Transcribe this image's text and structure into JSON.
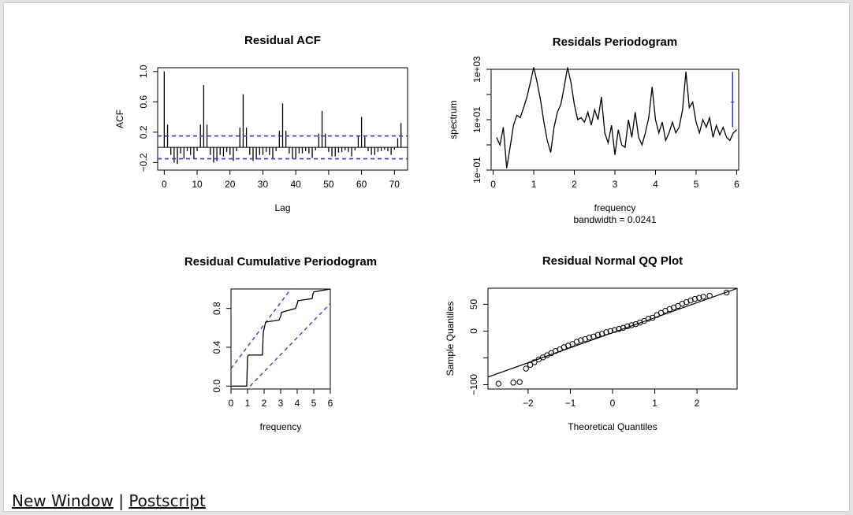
{
  "links": {
    "new_window": "New Window",
    "separator": "|",
    "postscript": "Postscript"
  },
  "colors": {
    "reference": "#3b3bdb",
    "data": "#000000"
  },
  "chart_data": [
    {
      "type": "bar",
      "title": "Residual ACF",
      "xlabel": "Lag",
      "ylabel": "ACF",
      "xlim": [
        -2,
        74
      ],
      "ylim": [
        -0.3,
        1.05
      ],
      "xticks": [
        "0",
        "10",
        "20",
        "30",
        "40",
        "50",
        "60",
        "70"
      ],
      "yticks": [
        "−0.2",
        "0.2",
        "0.6",
        "1.0"
      ],
      "confidence_band": 0.15,
      "lags": [
        0,
        1,
        2,
        3,
        4,
        5,
        6,
        7,
        8,
        9,
        10,
        11,
        12,
        13,
        14,
        15,
        16,
        17,
        18,
        19,
        20,
        21,
        22,
        23,
        24,
        25,
        26,
        27,
        28,
        29,
        30,
        31,
        32,
        33,
        34,
        35,
        36,
        37,
        38,
        39,
        40,
        41,
        42,
        43,
        44,
        45,
        46,
        47,
        48,
        49,
        50,
        51,
        52,
        53,
        54,
        55,
        56,
        57,
        58,
        59,
        60,
        61,
        62,
        63,
        64,
        65,
        66,
        67,
        68,
        69,
        70,
        71,
        72
      ],
      "values": [
        1.0,
        0.3,
        -0.1,
        -0.2,
        -0.22,
        -0.08,
        -0.15,
        -0.05,
        -0.1,
        -0.15,
        -0.05,
        0.3,
        0.82,
        0.3,
        -0.1,
        -0.2,
        -0.18,
        -0.1,
        -0.12,
        -0.06,
        -0.1,
        -0.18,
        -0.05,
        0.26,
        0.7,
        0.26,
        -0.1,
        -0.18,
        -0.16,
        -0.1,
        -0.1,
        -0.06,
        -0.1,
        -0.16,
        -0.05,
        0.22,
        0.58,
        0.22,
        -0.08,
        -0.15,
        -0.14,
        -0.08,
        -0.08,
        -0.05,
        -0.08,
        -0.14,
        -0.04,
        0.18,
        0.48,
        0.18,
        -0.06,
        -0.12,
        -0.12,
        -0.07,
        -0.06,
        -0.04,
        -0.06,
        -0.12,
        -0.04,
        0.15,
        0.4,
        0.14,
        -0.05,
        -0.1,
        -0.1,
        -0.06,
        -0.05,
        -0.03,
        -0.05,
        -0.1,
        -0.03,
        0.12,
        0.32
      ]
    },
    {
      "type": "line",
      "title": "Residals Periodogram",
      "xlabel": "frequency",
      "sublabel": "bandwidth = 0.0241",
      "ylabel": "spectrum",
      "log_y": true,
      "xlim": [
        -0.05,
        6.05
      ],
      "ylim": [
        0.1,
        1000
      ],
      "xticks": [
        "0",
        "1",
        "2",
        "3",
        "4",
        "5",
        "6"
      ],
      "yticks": [
        "1e−01",
        "1e+01",
        "1e+03"
      ],
      "x": [
        0.083,
        0.167,
        0.25,
        0.333,
        0.417,
        0.5,
        0.583,
        0.667,
        0.75,
        0.833,
        0.917,
        1.0,
        1.083,
        1.167,
        1.25,
        1.333,
        1.417,
        1.5,
        1.583,
        1.667,
        1.75,
        1.833,
        1.917,
        2.0,
        2.083,
        2.167,
        2.25,
        2.333,
        2.417,
        2.5,
        2.583,
        2.667,
        2.75,
        2.833,
        2.917,
        3.0,
        3.083,
        3.167,
        3.25,
        3.333,
        3.417,
        3.5,
        3.583,
        3.667,
        3.75,
        3.833,
        3.917,
        4.0,
        4.083,
        4.167,
        4.25,
        4.333,
        4.417,
        4.5,
        4.583,
        4.667,
        4.75,
        4.833,
        4.917,
        5.0,
        5.083,
        5.167,
        5.25,
        5.333,
        5.417,
        5.5,
        5.583,
        5.667,
        5.75,
        5.833,
        5.917,
        6.0
      ],
      "values": [
        2,
        1,
        5,
        0.12,
        0.8,
        6,
        15,
        12,
        30,
        80,
        300,
        1200,
        300,
        60,
        8,
        1.5,
        0.5,
        5,
        20,
        40,
        200,
        1200,
        300,
        40,
        10,
        12,
        8,
        20,
        6,
        25,
        10,
        80,
        3,
        1.2,
        6,
        0.4,
        4,
        1,
        0.8,
        10,
        2,
        20,
        2,
        1,
        3,
        12,
        200,
        10,
        3,
        8,
        1.5,
        3,
        8,
        3,
        5,
        25,
        800,
        30,
        50,
        8,
        3,
        10,
        5,
        12,
        2,
        6,
        2.5,
        5,
        2,
        1.5,
        3,
        4
      ],
      "ci_bar": {
        "x": 5.9,
        "center": 50,
        "low": 5,
        "high": 800
      }
    },
    {
      "type": "line",
      "title": "Residual Cumulative Periodogram",
      "xlabel": "frequency",
      "ylabel": "",
      "xlim": [
        0,
        6
      ],
      "ylim": [
        -0.03,
        1.0
      ],
      "xticks": [
        "0",
        "1",
        "2",
        "3",
        "4",
        "5",
        "6"
      ],
      "yticks": [
        "0.0",
        "0.4",
        "0.8"
      ],
      "x": [
        0,
        0.95,
        1.0,
        1.05,
        1.9,
        1.95,
        2.05,
        2.1,
        2.9,
        3.0,
        3.05,
        3.9,
        4.0,
        4.05,
        4.9,
        4.95,
        5.0,
        6.0
      ],
      "values": [
        0,
        0,
        0.3,
        0.32,
        0.32,
        0.55,
        0.63,
        0.66,
        0.68,
        0.72,
        0.76,
        0.8,
        0.85,
        0.88,
        0.9,
        0.95,
        0.97,
        1.0
      ],
      "band": {
        "lower_intercept_x": 1.15,
        "offset": 0.18
      }
    },
    {
      "type": "scatter",
      "title": "Residual Normal QQ Plot",
      "xlabel": "Theoretical Quantiles",
      "ylabel": "Sample Quantiles",
      "xlim": [
        -2.95,
        2.95
      ],
      "ylim": [
        -108,
        80
      ],
      "xticks": [
        "−2",
        "−1",
        "0",
        "1",
        "2"
      ],
      "yticks": [
        "−100",
        "0",
        "50"
      ],
      "qq_line": {
        "slope": 28,
        "intercept": -3
      },
      "x": [
        -2.7,
        -2.35,
        -2.2,
        -2.05,
        -1.95,
        -1.85,
        -1.75,
        -1.65,
        -1.55,
        -1.45,
        -1.35,
        -1.25,
        -1.15,
        -1.05,
        -0.95,
        -0.85,
        -0.75,
        -0.65,
        -0.55,
        -0.45,
        -0.35,
        -0.25,
        -0.15,
        -0.05,
        0.05,
        0.15,
        0.25,
        0.35,
        0.45,
        0.55,
        0.65,
        0.75,
        0.85,
        0.95,
        1.05,
        1.15,
        1.25,
        1.35,
        1.45,
        1.55,
        1.65,
        1.75,
        1.85,
        1.95,
        2.05,
        2.15,
        2.3,
        2.7
      ],
      "values": [
        -98,
        -96,
        -95,
        -70,
        -63,
        -58,
        -53,
        -49,
        -45,
        -41,
        -37,
        -34,
        -30,
        -27,
        -24,
        -20,
        -17,
        -15,
        -12,
        -10,
        -7,
        -5,
        -2,
        0,
        2,
        4,
        6,
        9,
        11,
        13,
        16,
        19,
        23,
        25,
        30,
        34,
        38,
        41,
        44,
        47,
        51,
        54,
        57,
        60,
        62,
        64,
        66,
        72
      ]
    }
  ]
}
